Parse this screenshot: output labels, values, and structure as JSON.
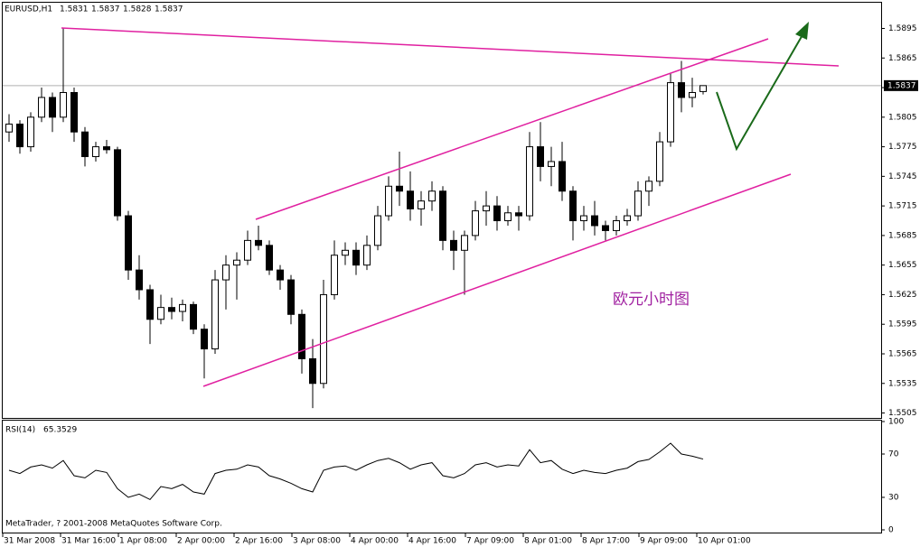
{
  "chart_data": [
    {
      "type": "candlestick",
      "title": "EURUSD,H1",
      "open": [
        1.579,
        1.5798,
        1.5775,
        1.5805,
        1.5825,
        1.5805,
        1.583,
        1.579,
        1.5765,
        1.5775,
        1.5772,
        1.5705,
        1.565,
        1.563,
        1.56,
        1.5612,
        1.5608,
        1.5615,
        1.559,
        1.557,
        1.564,
        1.5655,
        1.566,
        1.568,
        1.5675,
        1.565,
        1.564,
        1.5605,
        1.556,
        1.5535,
        1.5625,
        1.5665,
        1.567,
        1.5655,
        1.5675,
        1.5705,
        1.5735,
        1.573,
        1.5712,
        1.572,
        1.573,
        1.568,
        1.567,
        1.5685,
        1.571,
        1.5715,
        1.57,
        1.5708,
        1.5705,
        1.5775,
        1.5755,
        1.576,
        1.573,
        1.57,
        1.5705,
        1.5695,
        1.569,
        1.57,
        1.5705,
        1.573,
        1.574,
        1.578,
        1.584,
        1.5825,
        1.5831
      ],
      "high": [
        1.5808,
        1.5802,
        1.581,
        1.5835,
        1.583,
        1.5895,
        1.5835,
        1.5795,
        1.578,
        1.5782,
        1.5775,
        1.571,
        1.5665,
        1.5635,
        1.5625,
        1.5622,
        1.562,
        1.5618,
        1.5595,
        1.565,
        1.5665,
        1.5668,
        1.569,
        1.5695,
        1.568,
        1.5655,
        1.5645,
        1.561,
        1.558,
        1.564,
        1.568,
        1.5678,
        1.5678,
        1.5685,
        1.5715,
        1.5745,
        1.577,
        1.575,
        1.573,
        1.574,
        1.5735,
        1.569,
        1.569,
        1.572,
        1.573,
        1.5725,
        1.5715,
        1.5715,
        1.579,
        1.58,
        1.5775,
        1.578,
        1.5735,
        1.5715,
        1.572,
        1.57,
        1.5705,
        1.5712,
        1.574,
        1.5745,
        1.579,
        1.585,
        1.5862,
        1.5845,
        1.5837
      ],
      "low": [
        1.578,
        1.5768,
        1.577,
        1.58,
        1.579,
        1.58,
        1.578,
        1.5755,
        1.576,
        1.5768,
        1.57,
        1.564,
        1.562,
        1.5575,
        1.5595,
        1.56,
        1.5598,
        1.5585,
        1.554,
        1.5565,
        1.561,
        1.562,
        1.5655,
        1.567,
        1.5645,
        1.563,
        1.5595,
        1.5545,
        1.551,
        1.553,
        1.562,
        1.5655,
        1.5645,
        1.565,
        1.567,
        1.57,
        1.5715,
        1.57,
        1.5695,
        1.571,
        1.567,
        1.565,
        1.5625,
        1.568,
        1.5695,
        1.569,
        1.5695,
        1.569,
        1.57,
        1.574,
        1.5735,
        1.572,
        1.568,
        1.569,
        1.5685,
        1.568,
        1.5685,
        1.5695,
        1.57,
        1.5715,
        1.5735,
        1.5775,
        1.581,
        1.5815,
        1.5828
      ],
      "close": [
        1.5798,
        1.5775,
        1.5805,
        1.5825,
        1.5805,
        1.583,
        1.579,
        1.5765,
        1.5775,
        1.5772,
        1.5705,
        1.565,
        1.563,
        1.56,
        1.5612,
        1.5608,
        1.5615,
        1.559,
        1.557,
        1.564,
        1.5655,
        1.566,
        1.568,
        1.5675,
        1.565,
        1.564,
        1.5605,
        1.556,
        1.5535,
        1.5625,
        1.5665,
        1.567,
        1.5655,
        1.5675,
        1.5705,
        1.5735,
        1.573,
        1.5712,
        1.572,
        1.573,
        1.568,
        1.567,
        1.5685,
        1.571,
        1.5715,
        1.57,
        1.5708,
        1.5705,
        1.5775,
        1.5755,
        1.576,
        1.573,
        1.57,
        1.5705,
        1.5695,
        1.569,
        1.57,
        1.5705,
        1.573,
        1.574,
        1.578,
        1.584,
        1.5825,
        1.583,
        1.5837
      ],
      "ylim": [
        1.55,
        1.5922
      ],
      "yticks": [
        1.5895,
        1.5865,
        1.5835,
        1.5805,
        1.5775,
        1.5745,
        1.5715,
        1.5685,
        1.5655,
        1.5625,
        1.5595,
        1.5565,
        1.5535,
        1.5505
      ],
      "x_labels": [
        "31 Mar 2008",
        "31 Mar 16:00",
        "1 Apr 08:00",
        "2 Apr 00:00",
        "2 Apr 16:00",
        "3 Apr 08:00",
        "4 Apr 00:00",
        "4 Apr 16:00",
        "7 Apr 09:00",
        "8 Apr 01:00",
        "8 Apr 17:00",
        "9 Apr 09:00",
        "10 Apr 01:00"
      ],
      "color": "#000000",
      "annotation": "欧元小时图"
    },
    {
      "type": "line",
      "title": "RSI(14)",
      "values": [
        55,
        52,
        58,
        60,
        57,
        64,
        50,
        48,
        55,
        53,
        38,
        30,
        33,
        28,
        40,
        38,
        42,
        35,
        33,
        52,
        55,
        56,
        60,
        58,
        50,
        47,
        43,
        38,
        35,
        55,
        58,
        59,
        55,
        60,
        64,
        66,
        62,
        56,
        60,
        62,
        50,
        48,
        52,
        60,
        62,
        58,
        60,
        59,
        74,
        62,
        64,
        56,
        52,
        55,
        53,
        52,
        55,
        57,
        63,
        65,
        72,
        80,
        70,
        68,
        65.3529
      ],
      "ylim": [
        0,
        100
      ],
      "yticks": [
        100,
        70,
        30,
        0
      ],
      "color": "#000000"
    }
  ],
  "footer": "MetaTrader, ? 2001-2008 MetaQuotes Software Corp."
}
